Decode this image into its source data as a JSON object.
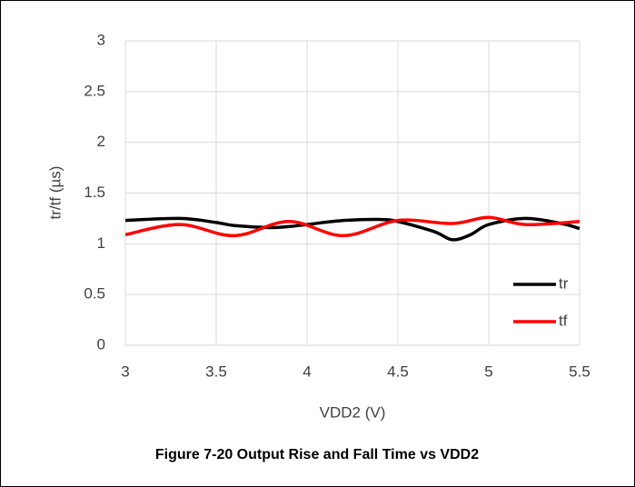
{
  "chart_data": {
    "type": "line",
    "ylabel": "tr/tf (µs)",
    "xlabel": "VDD2 (V)",
    "caption": "Figure 7-20 Output Rise and Fall Time vs VDD2",
    "xlim": [
      3,
      5.5
    ],
    "xticks": [
      3,
      3.5,
      4,
      4.5,
      5,
      5.5
    ],
    "ylim": [
      0,
      3
    ],
    "yticks": [
      0,
      0.5,
      1,
      1.5,
      2,
      2.5,
      3
    ],
    "grid": true,
    "legend": "lower right",
    "series": [
      {
        "name": "tr",
        "color": "#000000",
        "x": [
          3.0,
          3.3,
          3.5,
          3.6,
          3.8,
          3.9,
          4.0,
          4.2,
          4.4,
          4.5,
          4.7,
          4.8,
          4.9,
          5.0,
          5.2,
          5.4,
          5.5
        ],
        "values": [
          1.23,
          1.25,
          1.21,
          1.18,
          1.16,
          1.17,
          1.19,
          1.23,
          1.24,
          1.22,
          1.12,
          1.04,
          1.09,
          1.19,
          1.25,
          1.2,
          1.15
        ]
      },
      {
        "name": "tf",
        "color": "#ff0000",
        "x": [
          3.0,
          3.3,
          3.6,
          3.9,
          4.2,
          4.5,
          4.8,
          5.0,
          5.2,
          5.5
        ],
        "values": [
          1.09,
          1.19,
          1.08,
          1.22,
          1.08,
          1.23,
          1.2,
          1.26,
          1.19,
          1.22
        ]
      }
    ]
  }
}
